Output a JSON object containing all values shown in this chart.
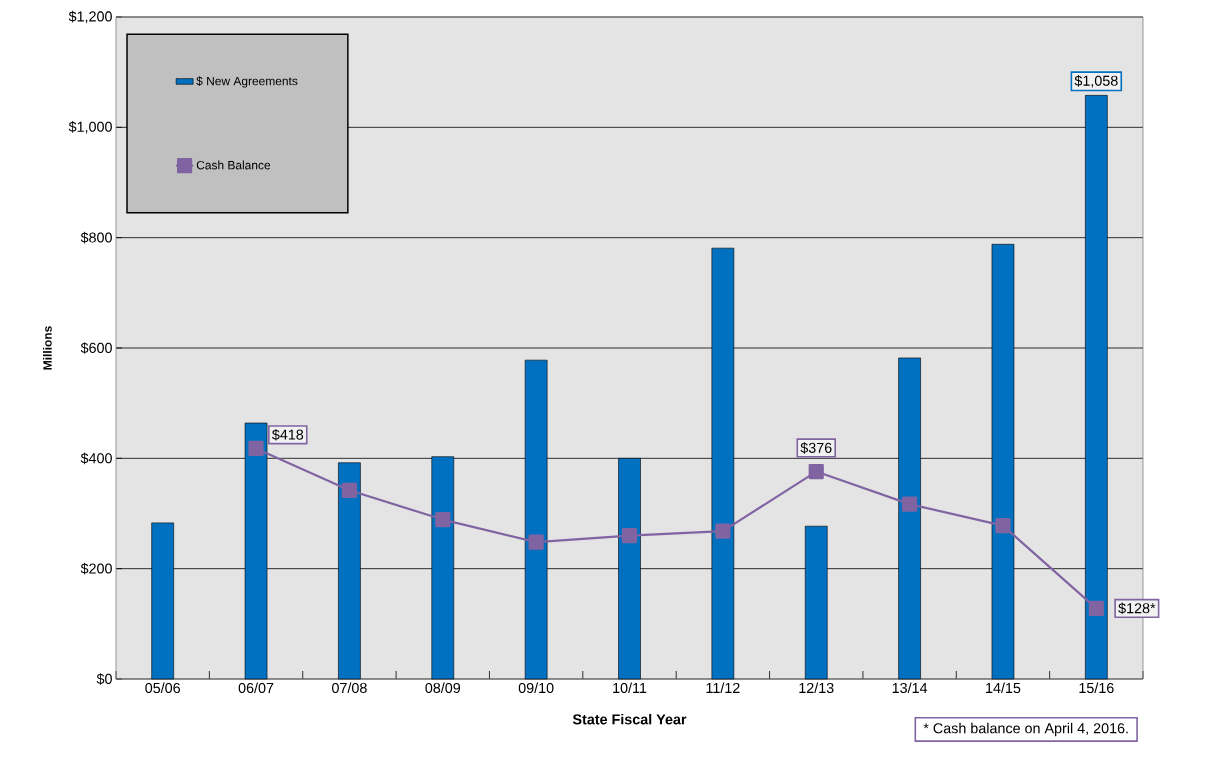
{
  "chart_data": {
    "type": "bar",
    "xlabel": "State Fiscal Year",
    "ylabel": "Millions",
    "categories": [
      "05/06",
      "06/07",
      "07/08",
      "08/09",
      "09/10",
      "10/11",
      "11/12",
      "12/13",
      "13/14",
      "14/15",
      "15/16"
    ],
    "series": [
      {
        "name": "$ New Agreements",
        "color": "#0070c0",
        "values": [
          283,
          464,
          392,
          403,
          578,
          400,
          781,
          277,
          582,
          788,
          1058
        ],
        "value_labels": [
          null,
          null,
          null,
          null,
          null,
          null,
          null,
          null,
          null,
          null,
          "$1,058"
        ]
      },
      {
        "name": "Cash Balance",
        "type": "line",
        "color": "#8064a2",
        "marker": "square",
        "values": [
          null,
          418,
          342,
          289,
          248,
          260,
          268,
          376,
          317,
          278,
          128
        ],
        "value_labels": [
          null,
          "$418",
          null,
          null,
          null,
          null,
          null,
          "$376",
          null,
          null,
          "$128*"
        ]
      }
    ],
    "ylim": [
      0,
      1200
    ],
    "yticks": [
      {
        "value": 0,
        "label": "$0"
      },
      {
        "value": 200,
        "label": "$200"
      },
      {
        "value": 400,
        "label": "$400"
      },
      {
        "value": 600,
        "label": "$600"
      },
      {
        "value": 800,
        "label": "$800"
      },
      {
        "value": 1000,
        "label": "$1,000"
      },
      {
        "value": 1200,
        "label": "$1,200"
      }
    ],
    "grid": "y",
    "legend": "top left",
    "annotations": [
      "* Cash balance on April 4, 2016."
    ]
  }
}
